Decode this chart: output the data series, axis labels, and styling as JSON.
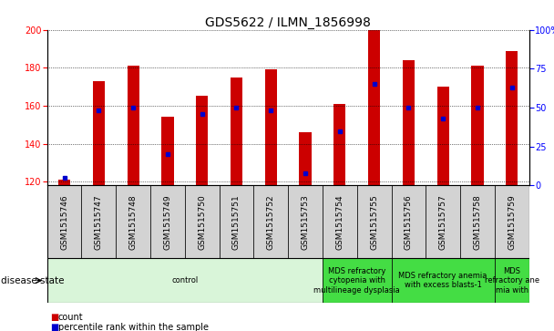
{
  "title": "GDS5622 / ILMN_1856998",
  "samples": [
    "GSM1515746",
    "GSM1515747",
    "GSM1515748",
    "GSM1515749",
    "GSM1515750",
    "GSM1515751",
    "GSM1515752",
    "GSM1515753",
    "GSM1515754",
    "GSM1515755",
    "GSM1515756",
    "GSM1515757",
    "GSM1515758",
    "GSM1515759"
  ],
  "counts": [
    121,
    173,
    181,
    154,
    165,
    175,
    179,
    146,
    161,
    200,
    184,
    170,
    181,
    189
  ],
  "percentile_ranks": [
    5,
    48,
    50,
    20,
    46,
    50,
    48,
    8,
    35,
    65,
    50,
    43,
    50,
    63
  ],
  "ymin": 118,
  "ymax": 200,
  "yticks_left": [
    120,
    140,
    160,
    180,
    200
  ],
  "yticks_right": [
    0,
    25,
    50,
    75,
    100
  ],
  "bar_color": "#cc0000",
  "dot_color": "#0000cc",
  "bar_width": 0.35,
  "disease_groups": [
    {
      "label": "control",
      "start": 0,
      "end": 8,
      "color": "#d9f5d9"
    },
    {
      "label": "MDS refractory\ncytopenia with\nmultilineage dysplasia",
      "start": 8,
      "end": 10,
      "color": "#44dd44"
    },
    {
      "label": "MDS refractory anemia\nwith excess blasts-1",
      "start": 10,
      "end": 13,
      "color": "#44dd44"
    },
    {
      "label": "MDS\nrefractory ane\nmia with",
      "start": 13,
      "end": 14,
      "color": "#44dd44"
    }
  ],
  "sample_box_color": "#d3d3d3",
  "disease_state_label": "disease state",
  "legend_count": "count",
  "legend_percentile": "percentile rank within the sample",
  "title_fontsize": 10,
  "tick_fontsize": 7,
  "label_fontsize": 7
}
